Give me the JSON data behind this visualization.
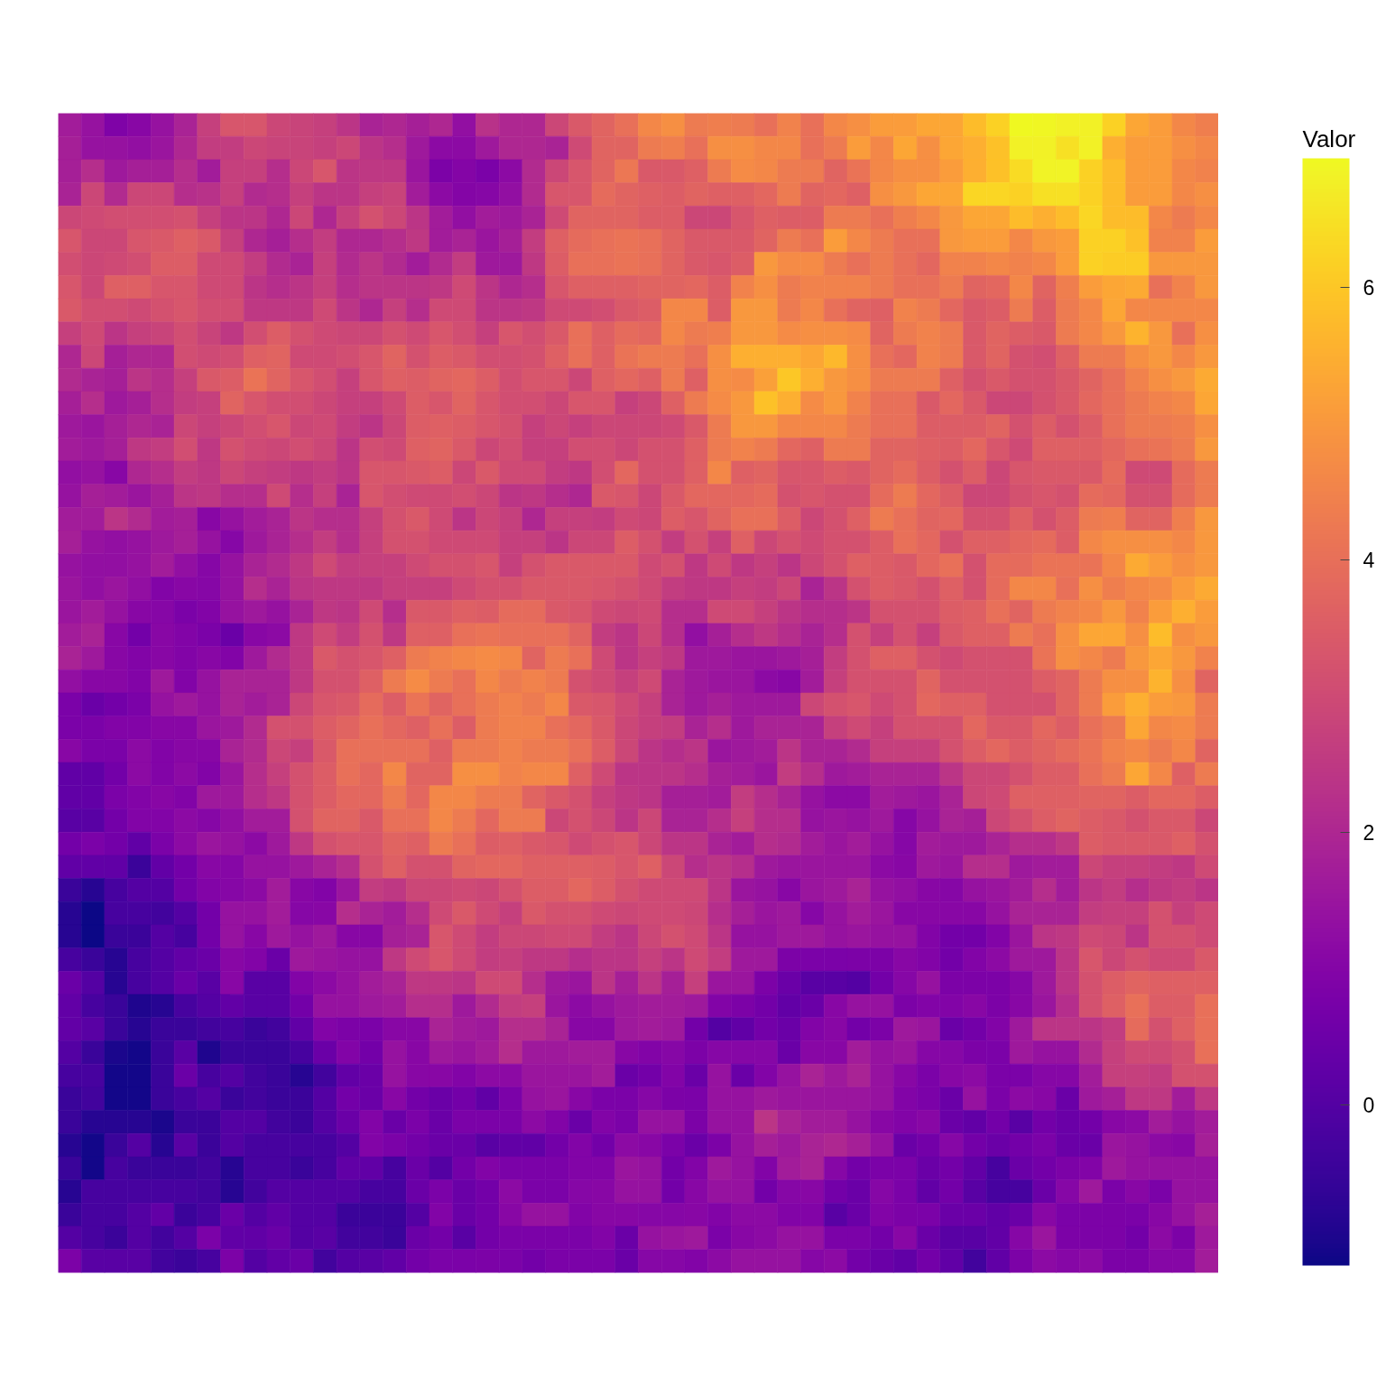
{
  "chart_data": {
    "type": "heatmap",
    "clabel": "Valor",
    "clim": [
      -1.18,
      6.95
    ],
    "cticks": [
      0,
      2,
      4,
      6
    ],
    "categories": [
      null,
      null,
      null,
      null,
      null,
      null,
      null,
      null,
      null,
      null,
      null,
      null,
      null,
      null,
      null,
      null,
      null,
      null,
      null,
      null,
      null,
      null,
      null,
      null,
      null,
      null,
      null,
      null,
      null,
      null,
      null,
      null,
      null,
      null,
      null,
      null,
      null,
      null,
      null,
      null,
      null,
      null,
      null,
      null,
      null,
      null,
      null,
      null,
      null,
      null
    ],
    "y_categories": [
      null,
      null,
      null,
      null,
      null,
      null,
      null,
      null,
      null,
      null,
      null,
      null,
      null,
      null,
      null,
      null,
      null,
      null,
      null,
      null,
      null,
      null,
      null,
      null,
      null,
      null,
      null,
      null,
      null,
      null,
      null,
      null,
      null,
      null,
      null,
      null,
      null,
      null,
      null,
      null,
      null,
      null,
      null,
      null,
      null,
      null,
      null,
      null,
      null,
      null
    ],
    "cells": [
      [
        1.7,
        1.4,
        0.9,
        1.1,
        1.4,
        1.9,
        2.7,
        3.3,
        3.3,
        2.9,
        2.8,
        2.7,
        2.4,
        1.9,
        2.0,
        1.8,
        2.0,
        1.3,
        2.3,
        2.0,
        2.0,
        2.9,
        3.4,
        3.7,
        4.0,
        4.6,
        4.8,
        4.3,
        4.4,
        4.3,
        4.0,
        4.5,
        4.0,
        4.6,
        4.8,
        5.1,
        5.1,
        5.3,
        5.3,
        5.8,
        6.2,
        6.95,
        6.9,
        6.8,
        6.8,
        6.2,
        5.3,
        5.1,
        4.6,
        4.4
      ],
      [
        1.8,
        1.4,
        1.4,
        1.3,
        1.5,
        2.0,
        2.6,
        2.6,
        2.9,
        2.8,
        2.8,
        2.7,
        2.9,
        2.4,
        2.2,
        1.6,
        1.2,
        1.2,
        1.6,
        2.0,
        2.0,
        1.9,
        3.0,
        3.7,
        3.7,
        4.3,
        4.4,
        4.0,
        4.8,
        4.8,
        4.6,
        4.6,
        4.0,
        4.3,
        5.1,
        4.6,
        5.3,
        4.8,
        5.3,
        5.5,
        5.9,
        6.8,
        6.8,
        6.5,
        6.8,
        5.5,
        5.1,
        5.1,
        4.8,
        4.6
      ],
      [
        1.8,
        2.2,
        1.6,
        1.8,
        1.8,
        2.2,
        1.7,
        2.7,
        2.7,
        2.2,
        2.9,
        3.3,
        2.4,
        2.5,
        2.5,
        1.5,
        0.85,
        1.0,
        0.8,
        1.2,
        2.1,
        2.9,
        3.3,
        3.7,
        4.2,
        3.4,
        3.4,
        3.6,
        4.3,
        4.7,
        4.6,
        4.3,
        4.3,
        3.7,
        4.1,
        4.6,
        4.8,
        4.8,
        5.1,
        5.5,
        5.9,
        6.4,
        6.85,
        6.85,
        6.2,
        5.8,
        5.1,
        5.1,
        4.6,
        4.5
      ],
      [
        1.9,
        2.9,
        2.1,
        2.9,
        2.9,
        2.2,
        2.3,
        2.7,
        2.1,
        2.2,
        2.7,
        2.4,
        2.4,
        2.7,
        2.8,
        1.7,
        1.2,
        1.0,
        1.05,
        1.3,
        2.1,
        3.3,
        3.3,
        3.9,
        3.7,
        3.6,
        3.5,
        3.7,
        3.6,
        3.6,
        3.8,
        4.3,
        3.7,
        3.8,
        3.6,
        4.8,
        5.0,
        5.3,
        5.3,
        6.3,
        6.3,
        6.2,
        6.5,
        6.5,
        6.2,
        5.8,
        5.1,
        5.1,
        4.6,
        4.8
      ],
      [
        2.9,
        3.0,
        3.1,
        3.1,
        3.1,
        3.2,
        2.7,
        2.4,
        2.4,
        2.0,
        2.9,
        2.0,
        2.7,
        3.2,
        2.9,
        2.4,
        1.7,
        1.3,
        1.7,
        1.6,
        1.9,
        3.0,
        3.7,
        3.7,
        3.7,
        3.5,
        3.5,
        2.9,
        2.9,
        3.3,
        3.6,
        3.5,
        3.5,
        4.3,
        4.3,
        4.0,
        4.4,
        4.6,
        5.0,
        5.3,
        5.3,
        5.8,
        5.5,
        5.8,
        6.3,
        5.8,
        5.8,
        4.6,
        4.3,
        4.6
      ],
      [
        3.3,
        2.9,
        2.9,
        3.3,
        3.4,
        3.6,
        3.4,
        2.7,
        2.0,
        1.8,
        2.2,
        2.6,
        2.0,
        2.0,
        2.2,
        2.5,
        1.7,
        1.9,
        1.5,
        1.8,
        2.6,
        3.6,
        3.9,
        4.0,
        4.1,
        4.0,
        3.7,
        3.4,
        3.4,
        3.4,
        3.7,
        4.3,
        4.0,
        5.1,
        4.6,
        4.3,
        4.0,
        4.0,
        5.0,
        5.1,
        5.1,
        4.6,
        5.0,
        5.1,
        6.2,
        6.2,
        5.9,
        4.5,
        4.5,
        5.1
      ],
      [
        3.1,
        2.9,
        3.0,
        3.1,
        3.5,
        3.5,
        3.0,
        3.0,
        2.6,
        2.1,
        1.9,
        2.7,
        2.1,
        2.4,
        2.1,
        1.7,
        2.1,
        2.6,
        1.6,
        1.6,
        2.5,
        3.5,
        4.0,
        4.0,
        4.1,
        4.0,
        3.7,
        3.4,
        3.3,
        3.5,
        5.0,
        4.7,
        4.7,
        4.3,
        4.0,
        4.3,
        4.0,
        3.8,
        4.5,
        4.5,
        4.6,
        4.5,
        4.6,
        5.1,
        6.2,
        6.1,
        6.1,
        5.0,
        5.0,
        5.0
      ],
      [
        3.3,
        2.9,
        3.6,
        3.6,
        3.3,
        3.3,
        3.0,
        3.0,
        2.4,
        2.2,
        2.4,
        2.7,
        2.2,
        2.4,
        2.4,
        2.4,
        2.5,
        3.0,
        2.4,
        2.0,
        2.2,
        3.3,
        3.6,
        3.6,
        3.6,
        3.7,
        3.7,
        3.8,
        3.5,
        4.5,
        4.8,
        4.3,
        4.5,
        4.5,
        4.5,
        4.3,
        4.0,
        4.0,
        4.3,
        3.7,
        3.8,
        4.6,
        3.7,
        4.4,
        5.1,
        5.3,
        5.4,
        4.0,
        4.5,
        5.0
      ],
      [
        3.4,
        3.1,
        3.1,
        3.0,
        3.2,
        3.3,
        3.1,
        3.1,
        2.5,
        2.5,
        2.5,
        3.0,
        2.4,
        2.0,
        2.7,
        2.2,
        3.0,
        3.0,
        2.4,
        2.4,
        2.5,
        3.0,
        3.0,
        3.1,
        3.4,
        3.5,
        4.6,
        4.6,
        3.5,
        5.0,
        5.0,
        4.3,
        4.6,
        4.0,
        3.7,
        3.6,
        4.5,
        4.3,
        3.8,
        3.4,
        3.5,
        4.3,
        3.5,
        4.3,
        4.6,
        5.3,
        4.6,
        4.6,
        4.6,
        4.6
      ],
      [
        2.7,
        3.0,
        2.4,
        2.7,
        2.8,
        3.1,
        2.8,
        2.5,
        3.1,
        3.5,
        3.2,
        3.0,
        2.9,
        2.9,
        3.2,
        3.0,
        3.3,
        3.1,
        2.7,
        3.3,
        3.1,
        3.4,
        4.0,
        3.6,
        3.9,
        3.8,
        4.6,
        4.3,
        4.4,
        5.0,
        5.0,
        4.7,
        4.8,
        4.8,
        4.7,
        3.7,
        4.3,
        4.5,
        4.3,
        3.4,
        3.7,
        3.5,
        3.4,
        4.3,
        4.6,
        5.0,
        5.6,
        5.0,
        4.0,
        4.8
      ],
      [
        2.0,
        2.9,
        1.8,
        2.0,
        2.0,
        3.1,
        3.0,
        3.1,
        3.6,
        3.7,
        3.0,
        3.0,
        3.1,
        3.3,
        3.7,
        3.2,
        3.5,
        3.4,
        3.1,
        3.1,
        3.2,
        3.6,
        4.0,
        3.6,
        4.1,
        4.3,
        4.3,
        4.0,
        4.8,
        5.5,
        5.5,
        5.5,
        5.3,
        5.7,
        4.8,
        4.0,
        3.8,
        4.5,
        4.3,
        3.4,
        3.7,
        3.2,
        3.1,
        3.6,
        4.3,
        4.3,
        4.8,
        5.0,
        4.6,
        5.0
      ],
      [
        2.1,
        1.9,
        1.8,
        2.4,
        2.2,
        2.7,
        3.4,
        3.5,
        4.1,
        3.7,
        3.3,
        3.1,
        2.7,
        3.3,
        3.6,
        3.5,
        3.7,
        3.8,
        3.5,
        3.1,
        3.3,
        3.3,
        2.9,
        3.6,
        3.8,
        3.6,
        4.3,
        3.6,
        4.8,
        4.7,
        5.2,
        6.0,
        5.5,
        5.0,
        4.8,
        4.3,
        4.3,
        4.3,
        3.6,
        3.2,
        3.4,
        3.2,
        3.2,
        3.4,
        3.7,
        4.0,
        4.5,
        4.8,
        5.0,
        5.4
      ],
      [
        1.8,
        2.2,
        1.6,
        1.8,
        2.2,
        2.6,
        2.7,
        3.7,
        3.3,
        3.1,
        3.1,
        2.9,
        2.7,
        2.7,
        3.0,
        3.5,
        3.3,
        3.7,
        3.3,
        3.1,
        3.1,
        2.9,
        3.3,
        3.3,
        2.7,
        2.9,
        3.6,
        4.3,
        4.7,
        5.0,
        5.9,
        5.5,
        4.7,
        5.0,
        4.5,
        4.0,
        4.0,
        3.4,
        3.8,
        3.4,
        2.9,
        2.9,
        3.2,
        3.4,
        3.8,
        4.0,
        4.3,
        4.5,
        4.6,
        5.3
      ],
      [
        1.6,
        1.5,
        1.8,
        2.0,
        1.9,
        2.9,
        2.7,
        2.9,
        3.1,
        3.3,
        2.9,
        3.0,
        2.6,
        2.4,
        2.9,
        3.5,
        3.6,
        3.5,
        3.3,
        3.2,
        2.7,
        2.9,
        2.7,
        2.9,
        2.9,
        2.9,
        3.0,
        3.4,
        4.3,
        5.0,
        5.0,
        4.6,
        4.6,
        4.6,
        4.3,
        4.0,
        4.0,
        3.5,
        3.5,
        3.5,
        3.7,
        3.2,
        3.5,
        3.2,
        3.5,
        4.0,
        4.3,
        4.3,
        4.4,
        4.8
      ],
      [
        1.7,
        1.6,
        1.8,
        2.5,
        2.6,
        3.1,
        2.5,
        3.2,
        3.0,
        2.9,
        3.1,
        2.9,
        2.4,
        3.1,
        3.0,
        3.6,
        3.7,
        3.4,
        2.9,
        3.1,
        2.7,
        2.7,
        3.1,
        3.1,
        2.9,
        3.2,
        3.2,
        3.6,
        4.3,
        4.5,
        4.3,
        3.8,
        3.6,
        4.3,
        4.3,
        3.7,
        3.7,
        3.6,
        3.5,
        3.8,
        3.3,
        3.0,
        3.6,
        3.6,
        3.6,
        3.8,
        4.0,
        4.1,
        4.3,
        5.0
      ],
      [
        1.3,
        1.4,
        1.1,
        2.0,
        2.2,
        2.6,
        2.5,
        2.9,
        2.7,
        2.6,
        2.5,
        2.6,
        2.4,
        3.3,
        3.3,
        3.4,
        3.5,
        2.9,
        3.4,
        3.0,
        3.0,
        2.6,
        2.5,
        3.1,
        3.8,
        3.2,
        3.2,
        3.6,
        4.6,
        3.6,
        3.7,
        3.3,
        3.3,
        3.5,
        3.4,
        3.7,
        3.9,
        3.5,
        3.2,
        3.5,
        2.9,
        3.3,
        3.4,
        3.4,
        3.4,
        3.9,
        3.0,
        3.0,
        3.9,
        4.3
      ],
      [
        1.4,
        1.8,
        1.7,
        1.5,
        1.8,
        2.4,
        2.5,
        2.2,
        2.2,
        3.0,
        2.2,
        2.7,
        1.9,
        3.3,
        3.1,
        3.0,
        3.0,
        3.1,
        2.9,
        2.4,
        2.5,
        2.2,
        2.0,
        3.4,
        3.3,
        2.9,
        3.4,
        3.8,
        3.8,
        3.8,
        3.9,
        3.2,
        3.3,
        3.2,
        3.2,
        3.9,
        4.3,
        3.8,
        3.5,
        2.9,
        2.9,
        3.2,
        3.3,
        3.2,
        3.9,
        3.8,
        3.2,
        3.2,
        3.9,
        4.3
      ],
      [
        1.7,
        1.7,
        2.4,
        2.1,
        1.7,
        1.8,
        1.1,
        1.4,
        1.7,
        1.9,
        2.4,
        2.2,
        2.2,
        2.7,
        3.2,
        3.4,
        3.0,
        2.4,
        2.9,
        2.7,
        2.0,
        2.7,
        2.7,
        2.6,
        3.0,
        2.9,
        3.5,
        3.3,
        3.7,
        4.0,
        4.0,
        3.5,
        2.9,
        3.2,
        3.6,
        4.3,
        4.0,
        3.7,
        3.8,
        3.2,
        3.2,
        3.6,
        3.2,
        3.5,
        4.3,
        4.4,
        3.7,
        3.7,
        4.4,
        5.0
      ],
      [
        1.8,
        1.4,
        1.3,
        1.4,
        1.6,
        1.8,
        1.4,
        1.05,
        1.6,
        1.9,
        2.2,
        2.6,
        2.2,
        2.7,
        3.2,
        3.2,
        3.0,
        3.0,
        3.0,
        2.7,
        2.7,
        2.4,
        2.9,
        2.9,
        3.5,
        3.2,
        2.6,
        3.2,
        2.7,
        3.6,
        2.9,
        3.2,
        3.0,
        3.2,
        3.2,
        3.5,
        4.0,
        3.8,
        3.2,
        3.6,
        3.6,
        3.8,
        3.9,
        3.5,
        4.6,
        4.8,
        4.8,
        4.8,
        4.6,
        5.0
      ],
      [
        1.4,
        1.3,
        1.3,
        1.4,
        1.7,
        1.3,
        1.05,
        1.4,
        1.9,
        2.1,
        2.5,
        3.0,
        2.6,
        2.7,
        2.7,
        3.0,
        3.2,
        3.2,
        3.3,
        2.7,
        3.2,
        3.4,
        3.4,
        3.4,
        3.4,
        3.0,
        3.2,
        2.5,
        3.0,
        2.5,
        2.7,
        2.4,
        2.9,
        3.2,
        3.6,
        3.5,
        3.4,
        3.8,
        4.0,
        3.2,
        3.9,
        3.9,
        4.1,
        4.1,
        4.1,
        4.6,
        5.4,
        5.1,
        4.8,
        5.0
      ],
      [
        1.5,
        1.3,
        1.5,
        1.3,
        0.95,
        1.1,
        1.05,
        1.4,
        2.2,
        1.9,
        2.4,
        2.5,
        2.5,
        2.5,
        2.7,
        2.7,
        2.7,
        3.0,
        3.2,
        3.2,
        3.4,
        3.4,
        3.4,
        3.3,
        3.2,
        3.0,
        2.6,
        2.5,
        2.5,
        2.7,
        2.6,
        2.9,
        1.9,
        2.4,
        3.2,
        3.5,
        3.4,
        3.2,
        3.6,
        3.2,
        3.9,
        4.6,
        4.6,
        4.0,
        4.8,
        4.4,
        4.6,
        4.7,
        5.1,
        5.4
      ],
      [
        1.5,
        1.7,
        1.4,
        1.1,
        1.05,
        0.8,
        0.95,
        1.4,
        1.6,
        1.4,
        1.9,
        2.5,
        2.4,
        3.0,
        2.2,
        3.4,
        3.4,
        3.6,
        3.5,
        3.9,
        3.9,
        3.4,
        3.3,
        3.0,
        2.9,
        3.0,
        2.2,
        2.2,
        3.0,
        3.0,
        2.7,
        2.4,
        2.2,
        2.2,
        2.4,
        3.2,
        3.2,
        3.2,
        3.5,
        3.6,
        4.0,
        3.7,
        4.3,
        4.5,
        4.6,
        5.0,
        4.5,
        5.1,
        5.5,
        5.1
      ],
      [
        1.7,
        1.9,
        1.1,
        0.65,
        1.1,
        0.95,
        0.8,
        0.45,
        1.1,
        1.2,
        2.5,
        3.0,
        2.6,
        3.2,
        2.5,
        3.6,
        3.6,
        4.0,
        4.1,
        4.0,
        4.0,
        4.0,
        3.7,
        2.6,
        2.4,
        2.9,
        2.2,
        1.3,
        1.8,
        2.2,
        2.5,
        2.2,
        1.9,
        2.2,
        3.2,
        2.7,
        3.2,
        2.7,
        3.4,
        3.6,
        3.6,
        4.3,
        4.0,
        4.8,
        5.3,
        5.3,
        4.8,
        5.8,
        4.8,
        5.0
      ],
      [
        1.9,
        1.6,
        1.1,
        0.95,
        1.1,
        0.95,
        1.1,
        0.95,
        1.6,
        2.1,
        2.5,
        3.4,
        3.2,
        3.3,
        3.6,
        4.3,
        4.5,
        4.6,
        4.7,
        4.6,
        3.7,
        4.3,
        4.0,
        3.0,
        2.4,
        2.7,
        2.5,
        1.6,
        1.6,
        1.5,
        1.5,
        1.6,
        1.8,
        2.6,
        3.2,
        3.6,
        3.6,
        3.2,
        3.0,
        3.2,
        3.2,
        3.2,
        4.1,
        4.8,
        4.6,
        4.3,
        5.0,
        5.3,
        5.0,
        4.5
      ],
      [
        1.3,
        1.1,
        1.1,
        0.95,
        1.6,
        0.95,
        1.4,
        1.9,
        1.9,
        1.9,
        2.5,
        3.2,
        3.2,
        3.6,
        4.3,
        4.7,
        4.3,
        4.0,
        4.6,
        4.3,
        4.5,
        4.3,
        3.2,
        3.0,
        2.7,
        3.0,
        1.9,
        1.6,
        1.5,
        1.5,
        1.2,
        1.1,
        1.7,
        2.7,
        3.2,
        3.2,
        3.2,
        3.7,
        3.2,
        3.2,
        3.2,
        3.2,
        3.5,
        3.7,
        4.3,
        4.8,
        4.8,
        5.6,
        4.8,
        3.7
      ],
      [
        0.8,
        0.45,
        0.65,
        0.8,
        1.4,
        1.6,
        1.4,
        1.9,
        1.7,
        1.9,
        2.9,
        3.3,
        3.4,
        3.9,
        3.5,
        4.1,
        3.7,
        4.0,
        4.3,
        4.5,
        4.3,
        4.6,
        3.4,
        3.3,
        3.0,
        2.7,
        1.9,
        1.6,
        1.8,
        1.6,
        1.6,
        1.6,
        2.9,
        3.2,
        3.3,
        3.0,
        3.2,
        3.8,
        3.6,
        3.6,
        3.2,
        3.2,
        3.2,
        3.7,
        4.3,
        5.1,
        5.5,
        5.1,
        5.0,
        4.3
      ],
      [
        0.8,
        0.8,
        0.95,
        0.95,
        1.1,
        1.1,
        1.5,
        1.6,
        2.1,
        3.2,
        3.2,
        3.5,
        3.7,
        4.0,
        3.8,
        3.6,
        4.0,
        3.5,
        4.3,
        4.5,
        4.5,
        4.0,
        3.8,
        3.4,
        2.9,
        2.7,
        2.6,
        1.9,
        2.2,
        1.6,
        1.9,
        1.9,
        1.9,
        2.7,
        3.0,
        2.7,
        3.2,
        3.2,
        3.2,
        3.8,
        3.4,
        3.4,
        3.8,
        3.5,
        4.0,
        4.3,
        5.3,
        4.6,
        4.7,
        4.3
      ],
      [
        1.1,
        0.8,
        0.8,
        1.2,
        0.95,
        1.1,
        1.1,
        1.9,
        2.1,
        2.9,
        2.7,
        3.4,
        4.0,
        4.0,
        4.0,
        4.0,
        3.6,
        4.3,
        4.3,
        4.5,
        4.3,
        4.3,
        4.0,
        3.5,
        2.9,
        2.4,
        2.2,
        2.4,
        1.5,
        1.6,
        1.7,
        2.4,
        1.9,
        1.9,
        2.1,
        2.7,
        2.7,
        2.7,
        3.2,
        3.5,
        3.8,
        3.5,
        3.7,
        3.9,
        4.1,
        4.5,
        4.6,
        4.3,
        4.6,
        3.7
      ],
      [
        0.25,
        0.25,
        0.65,
        1.2,
        0.95,
        1.2,
        0.95,
        1.5,
        2.2,
        2.7,
        3.2,
        3.5,
        4.0,
        3.8,
        4.6,
        3.7,
        3.7,
        4.8,
        4.8,
        4.5,
        4.6,
        4.6,
        3.6,
        3.0,
        2.4,
        2.4,
        2.4,
        2.2,
        1.8,
        1.7,
        1.5,
        2.6,
        2.2,
        1.6,
        1.7,
        1.9,
        1.9,
        1.9,
        2.4,
        2.9,
        2.9,
        3.2,
        3.5,
        3.5,
        4.0,
        4.3,
        5.3,
        4.6,
        3.6,
        4.3
      ],
      [
        0.25,
        0.3,
        0.8,
        0.95,
        1.1,
        0.95,
        1.6,
        1.6,
        2.2,
        2.5,
        3.2,
        3.5,
        3.8,
        3.8,
        4.3,
        3.8,
        4.6,
        4.6,
        4.3,
        4.3,
        3.7,
        3.4,
        3.2,
        2.7,
        2.5,
        2.4,
        1.8,
        1.8,
        1.7,
        2.6,
        2.2,
        1.9,
        1.4,
        1.2,
        1.2,
        1.7,
        1.6,
        1.5,
        1.9,
        2.9,
        3.0,
        3.6,
        3.6,
        3.6,
        3.7,
        3.7,
        3.5,
        3.8,
        3.8,
        3.5
      ],
      [
        0.1,
        0.1,
        0.65,
        0.95,
        0.95,
        1.2,
        1.05,
        1.3,
        1.7,
        1.7,
        3.2,
        3.7,
        3.7,
        3.4,
        4.0,
        4.0,
        4.6,
        4.3,
        3.8,
        4.3,
        4.3,
        2.9,
        3.2,
        2.9,
        2.4,
        2.9,
        1.9,
        1.9,
        2.2,
        2.7,
        2.2,
        2.2,
        1.4,
        1.5,
        1.4,
        1.6,
        1.05,
        1.4,
        1.9,
        1.8,
        2.9,
        3.2,
        3.5,
        3.7,
        3.5,
        3.4,
        3.2,
        3.4,
        3.4,
        2.9
      ],
      [
        0.65,
        0.8,
        0.65,
        0.25,
        0.8,
        1.2,
        1.5,
        1.4,
        1.2,
        1.6,
        2.5,
        3.2,
        3.3,
        3.3,
        3.7,
        3.6,
        4.3,
        4.0,
        3.5,
        3.6,
        3.4,
        3.3,
        3.0,
        3.2,
        3.3,
        2.9,
        2.4,
        2.4,
        1.9,
        1.7,
        2.2,
        2.1,
        1.7,
        1.5,
        1.7,
        1.4,
        1.05,
        1.7,
        1.6,
        1.6,
        1.9,
        2.2,
        2.2,
        2.5,
        3.5,
        3.4,
        3.4,
        3.4,
        3.6,
        3.2
      ],
      [
        0.25,
        0.25,
        0.25,
        -0.45,
        0.3,
        0.65,
        1.1,
        1.05,
        1.4,
        1.4,
        1.6,
        1.9,
        2.2,
        3.2,
        3.6,
        3.2,
        3.2,
        3.7,
        3.8,
        3.8,
        3.6,
        3.6,
        3.6,
        3.5,
        3.3,
        3.6,
        2.9,
        2.2,
        2.4,
        2.2,
        1.6,
        1.5,
        1.5,
        1.5,
        1.5,
        1.2,
        1.1,
        1.6,
        1.5,
        2.2,
        2.2,
        1.6,
        1.7,
        1.7,
        2.9,
        2.7,
        2.7,
        2.6,
        2.5,
        3.0
      ],
      [
        -0.5,
        -0.8,
        -0.25,
        0.0,
        0.0,
        0.65,
        0.95,
        1.05,
        1.2,
        1.7,
        1.1,
        0.95,
        1.5,
        2.6,
        2.5,
        2.9,
        2.9,
        3.0,
        2.9,
        3.2,
        3.5,
        3.5,
        3.8,
        3.5,
        3.2,
        3.0,
        3.0,
        3.0,
        2.4,
        1.5,
        1.4,
        1.1,
        1.5,
        1.6,
        1.9,
        1.4,
        1.3,
        1.1,
        1.05,
        1.4,
        1.5,
        1.7,
        2.2,
        1.7,
        2.4,
        2.6,
        2.2,
        2.5,
        2.6,
        2.4
      ],
      [
        -0.8,
        -1.18,
        -0.25,
        -0.25,
        -0.35,
        0.0,
        0.65,
        1.4,
        1.4,
        1.7,
        1.05,
        1.1,
        2.2,
        1.9,
        1.7,
        2.2,
        3.0,
        3.4,
        3.0,
        2.7,
        3.4,
        3.2,
        3.2,
        3.0,
        2.9,
        3.0,
        3.0,
        2.9,
        2.2,
        1.8,
        1.5,
        1.6,
        1.05,
        1.4,
        1.7,
        1.5,
        1.1,
        1.1,
        1.1,
        1.1,
        1.4,
        1.9,
        1.9,
        1.9,
        2.6,
        2.7,
        2.7,
        3.2,
        2.7,
        3.0
      ],
      [
        -0.8,
        -1.18,
        -0.5,
        -0.45,
        0.0,
        -0.25,
        0.65,
        1.4,
        1.1,
        1.6,
        1.4,
        1.6,
        1.1,
        1.1,
        1.8,
        1.9,
        3.3,
        3.0,
        2.6,
        2.9,
        2.9,
        3.0,
        3.0,
        2.6,
        2.4,
        2.9,
        3.2,
        3.0,
        2.4,
        1.4,
        1.4,
        1.6,
        1.6,
        1.4,
        1.5,
        1.4,
        1.4,
        0.95,
        0.65,
        0.65,
        0.95,
        1.5,
        2.4,
        2.5,
        3.0,
        2.9,
        2.4,
        3.2,
        3.2,
        3.0
      ],
      [
        -0.25,
        -0.5,
        -0.8,
        -0.25,
        0.0,
        0.3,
        0.45,
        1.1,
        0.95,
        0.45,
        1.6,
        1.5,
        1.4,
        1.4,
        2.5,
        3.0,
        3.3,
        3.0,
        2.6,
        2.7,
        2.5,
        2.5,
        2.2,
        2.4,
        2.4,
        2.7,
        2.4,
        3.0,
        2.6,
        1.6,
        1.6,
        0.85,
        0.8,
        0.8,
        0.85,
        0.85,
        1.1,
        0.95,
        0.65,
        0.95,
        1.2,
        1.6,
        1.6,
        2.4,
        3.3,
        2.9,
        3.2,
        3.0,
        3.0,
        3.4
      ],
      [
        0.45,
        0.0,
        -0.8,
        -0.25,
        0.0,
        0.45,
        0.1,
        1.1,
        0.1,
        0.1,
        0.95,
        1.2,
        1.4,
        1.7,
        1.9,
        2.5,
        2.5,
        2.4,
        3.0,
        3.0,
        2.2,
        1.6,
        1.5,
        2.4,
        1.8,
        2.4,
        1.8,
        2.7,
        1.5,
        1.5,
        0.85,
        0.45,
        0.1,
        0.1,
        0.0,
        0.65,
        1.05,
        1.4,
        0.85,
        0.85,
        0.85,
        1.05,
        1.6,
        2.4,
        3.2,
        3.5,
        3.7,
        3.6,
        3.6,
        3.6
      ],
      [
        0.3,
        -0.25,
        -0.5,
        -0.95,
        -0.8,
        -0.25,
        0.0,
        0.3,
        0.1,
        0.1,
        0.65,
        1.4,
        1.4,
        1.6,
        1.7,
        2.2,
        2.2,
        1.6,
        2.1,
        2.6,
        2.7,
        1.5,
        1.2,
        1.4,
        1.6,
        1.7,
        1.7,
        1.6,
        0.95,
        0.85,
        0.65,
        0.3,
        0.45,
        1.1,
        1.4,
        1.4,
        0.85,
        0.95,
        0.95,
        1.1,
        0.85,
        1.1,
        1.5,
        2.2,
        3.2,
        3.6,
        4.0,
        3.5,
        3.5,
        4.0
      ],
      [
        0.3,
        0.1,
        -0.5,
        -0.8,
        -0.5,
        -0.5,
        -0.35,
        -0.25,
        -0.5,
        -0.35,
        0.25,
        0.95,
        0.85,
        0.8,
        1.1,
        1.1,
        1.9,
        1.7,
        1.6,
        2.2,
        2.2,
        1.9,
        1.1,
        1.1,
        1.6,
        1.7,
        1.6,
        0.65,
        0.0,
        0.25,
        0.65,
        0.45,
        0.95,
        1.1,
        0.65,
        0.85,
        1.6,
        1.5,
        0.45,
        0.65,
        0.95,
        1.6,
        2.4,
        2.4,
        2.4,
        2.6,
        3.9,
        3.2,
        3.6,
        4.0
      ],
      [
        0.0,
        -0.5,
        -1.0,
        -1.1,
        -0.5,
        0.1,
        -0.95,
        -0.5,
        -0.5,
        -0.5,
        -0.25,
        0.45,
        0.95,
        0.65,
        1.4,
        1.1,
        1.6,
        1.5,
        1.7,
        2.2,
        1.6,
        1.6,
        1.7,
        1.7,
        1.1,
        0.95,
        1.05,
        0.85,
        1.05,
        1.05,
        1.05,
        0.45,
        1.1,
        1.1,
        1.7,
        1.4,
        1.5,
        1.05,
        1.05,
        0.85,
        0.8,
        1.6,
        1.4,
        1.4,
        2.1,
        2.7,
        3.0,
        3.0,
        3.2,
        4.0
      ],
      [
        -0.25,
        -0.25,
        -1.1,
        -1.1,
        -0.5,
        0.45,
        -0.25,
        0.0,
        -0.35,
        -0.5,
        -0.8,
        -0.35,
        0.3,
        0.45,
        1.4,
        1.1,
        1.1,
        0.95,
        1.2,
        1.2,
        1.5,
        1.5,
        1.5,
        1.7,
        0.45,
        0.65,
        0.95,
        0.45,
        1.4,
        0.45,
        0.95,
        1.4,
        1.9,
        1.6,
        1.9,
        1.4,
        1.1,
        0.8,
        1.1,
        1.2,
        0.8,
        0.8,
        1.05,
        1.05,
        1.7,
        2.7,
        2.7,
        2.6,
        3.2,
        3.2
      ],
      [
        -0.5,
        -0.35,
        -1.1,
        -1.1,
        -0.5,
        -0.25,
        0.0,
        -0.5,
        -0.35,
        -0.5,
        -0.45,
        0.0,
        0.65,
        0.45,
        1.1,
        0.65,
        0.45,
        0.65,
        0.25,
        0.8,
        1.4,
        1.5,
        1.1,
        0.8,
        0.8,
        1.05,
        0.85,
        0.8,
        1.4,
        1.4,
        1.6,
        1.5,
        1.5,
        1.5,
        1.5,
        1.4,
        0.95,
        0.8,
        0.45,
        1.4,
        0.8,
        1.2,
        1.1,
        0.45,
        1.6,
        1.8,
        2.5,
        2.5,
        1.7,
        2.5
      ],
      [
        -0.5,
        -0.8,
        -0.8,
        -0.8,
        -1.0,
        -0.5,
        -0.45,
        0.0,
        0.0,
        -0.35,
        -0.45,
        0.0,
        0.45,
        0.95,
        0.45,
        0.8,
        0.45,
        0.8,
        0.8,
        0.8,
        1.2,
        0.95,
        0.45,
        0.95,
        0.8,
        1.4,
        1.4,
        0.85,
        1.4,
        1.4,
        2.4,
        1.9,
        1.7,
        1.7,
        1.4,
        1.1,
        0.95,
        1.1,
        0.45,
        0.3,
        0.65,
        0.1,
        0.65,
        0.45,
        0.65,
        1.1,
        1.2,
        1.7,
        1.4,
        1.7
      ],
      [
        -0.8,
        -1.1,
        -0.5,
        0.0,
        -0.8,
        0.1,
        -0.45,
        0.0,
        -0.25,
        -0.25,
        -0.25,
        -0.25,
        0.0,
        0.95,
        0.8,
        0.65,
        0.45,
        0.45,
        0.1,
        0.3,
        0.25,
        0.65,
        0.95,
        0.65,
        1.2,
        1.1,
        0.8,
        0.45,
        0.85,
        1.4,
        1.8,
        1.6,
        1.9,
        2.0,
        1.8,
        1.4,
        0.45,
        0.65,
        1.05,
        0.65,
        0.45,
        0.65,
        0.8,
        0.45,
        0.45,
        1.5,
        1.4,
        1.2,
        1.1,
        1.8
      ],
      [
        -0.5,
        -1.1,
        -0.25,
        -0.5,
        -0.5,
        -0.5,
        -0.35,
        -0.8,
        -0.25,
        -0.25,
        -0.5,
        -0.25,
        0.25,
        0.25,
        -0.25,
        0.45,
        0.0,
        0.65,
        0.95,
        0.8,
        0.8,
        0.8,
        0.95,
        0.95,
        1.5,
        1.4,
        0.65,
        0.95,
        1.6,
        1.4,
        0.95,
        1.7,
        1.9,
        1.05,
        0.65,
        0.8,
        0.8,
        0.45,
        0.65,
        0.3,
        -0.25,
        0.45,
        0.65,
        0.85,
        0.95,
        1.6,
        1.4,
        1.4,
        1.4,
        1.4
      ],
      [
        -0.8,
        -0.25,
        -0.25,
        -0.25,
        -0.25,
        -0.25,
        -0.35,
        -0.8,
        -0.35,
        0.0,
        0.0,
        0.0,
        0.0,
        -0.25,
        -0.25,
        0.45,
        0.8,
        0.45,
        0.65,
        1.2,
        0.8,
        0.8,
        1.05,
        1.1,
        1.4,
        1.4,
        0.65,
        1.1,
        1.4,
        1.4,
        0.65,
        1.05,
        1.1,
        0.65,
        0.45,
        1.05,
        0.8,
        0.3,
        0.65,
        0.1,
        -0.25,
        -0.25,
        0.45,
        1.05,
        1.6,
        0.8,
        1.1,
        0.8,
        1.4,
        1.4
      ],
      [
        -0.5,
        -0.25,
        -0.25,
        0.0,
        0.3,
        -0.45,
        -0.25,
        0.45,
        0.0,
        0.25,
        0.0,
        0.0,
        -0.45,
        -0.45,
        -0.45,
        0.0,
        0.95,
        0.45,
        0.65,
        1.1,
        1.4,
        1.4,
        0.95,
        1.1,
        1.1,
        1.05,
        1.05,
        1.1,
        0.95,
        1.2,
        1.2,
        0.95,
        0.95,
        0.1,
        0.45,
        0.95,
        0.85,
        0.8,
        0.45,
        0.45,
        0.25,
        0.45,
        1.1,
        0.8,
        0.85,
        0.85,
        0.8,
        1.1,
        1.4,
        1.8
      ],
      [
        0.0,
        -0.25,
        -0.45,
        0.0,
        -0.35,
        0.0,
        0.8,
        0.25,
        0.25,
        0.45,
        0.0,
        0.1,
        -0.35,
        -0.35,
        -0.5,
        0.45,
        0.65,
        0.1,
        0.65,
        0.8,
        0.8,
        0.8,
        0.8,
        0.95,
        0.45,
        1.4,
        1.5,
        1.6,
        0.8,
        1.1,
        1.2,
        1.4,
        1.4,
        0.8,
        0.8,
        0.65,
        1.1,
        0.45,
        0.1,
        0.1,
        0.3,
        1.05,
        1.5,
        0.85,
        0.85,
        0.85,
        0.65,
        1.2,
        0.85,
        1.6
      ],
      [
        0.85,
        0.1,
        0.1,
        0.1,
        -0.35,
        -0.45,
        -0.25,
        0.85,
        0.0,
        0.3,
        0.45,
        -0.35,
        0.0,
        0.1,
        0.25,
        0.65,
        0.8,
        0.8,
        0.85,
        0.8,
        0.65,
        0.8,
        0.8,
        0.8,
        0.45,
        1.05,
        1.05,
        0.95,
        1.2,
        1.4,
        1.4,
        1.4,
        1.05,
        1.2,
        0.65,
        0.45,
        0.25,
        0.65,
        0.25,
        -0.35,
        0.25,
        0.85,
        1.2,
        1.05,
        1.2,
        0.85,
        0.85,
        1.05,
        1.05,
        1.7
      ]
    ]
  }
}
